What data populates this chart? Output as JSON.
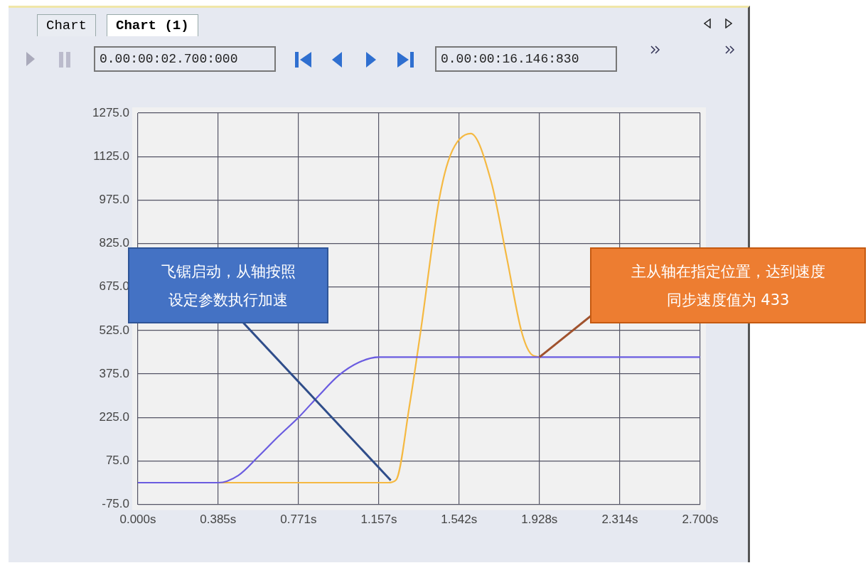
{
  "chart_data": {
    "type": "line",
    "marker": "none",
    "grid": true,
    "xlim": [
      0,
      2.7
    ],
    "xticks": [
      {
        "value": 0,
        "label": "0.000s"
      },
      {
        "value": 0.385,
        "label": "0.385s"
      },
      {
        "value": 0.771,
        "label": "0.771s"
      },
      {
        "value": 1.157,
        "label": "1.157s"
      },
      {
        "value": 1.542,
        "label": "1.542s"
      },
      {
        "value": 1.928,
        "label": "1.928s"
      },
      {
        "value": 2.314,
        "label": "2.314s"
      },
      {
        "value": 2.7,
        "label": "2.700s"
      }
    ],
    "ylim": [
      -75,
      1275
    ],
    "yticks": [
      {
        "value": -75,
        "label": "-75.0"
      },
      {
        "value": 75,
        "label": "75.0"
      },
      {
        "value": 225,
        "label": "225.0"
      },
      {
        "value": 375,
        "label": "375.0"
      },
      {
        "value": 525,
        "label": "525.0"
      },
      {
        "value": 675,
        "label": "675.0"
      },
      {
        "value": 825,
        "label": "825.0"
      },
      {
        "value": 975,
        "label": "975.0"
      },
      {
        "value": 1125,
        "label": "1125.0"
      },
      {
        "value": 1275,
        "label": "1275.0"
      }
    ],
    "series": [
      {
        "color": "#6a5ce0",
        "x": [
          0,
          0.385,
          0.482,
          0.578,
          0.675,
          0.771,
          0.868,
          0.964,
          1.061,
          1.157,
          2.7
        ],
        "values": [
          0,
          0,
          25,
          90,
          160,
          225,
          300,
          370,
          415,
          433,
          433
        ]
      },
      {
        "color": "#f5b942",
        "x": [
          0.385,
          1.2,
          1.24,
          1.304,
          1.358,
          1.446,
          1.5,
          1.598,
          1.696,
          1.77,
          1.841,
          1.885,
          1.928
        ],
        "values": [
          0,
          0,
          10,
          266,
          524,
          975,
          1129,
          1204,
          1039,
          780,
          524,
          446,
          433
        ]
      }
    ],
    "annotations": [
      "Chart",
      "Chart (1)",
      "0.00:00:02.700:000",
      "0.00:00:16.146:830",
      {
        "text": "飞锯启动，从轴按照设定参数执行加速",
        "x": 1.214,
        "y": 8
      },
      {
        "text": "主从轴在指定位置，达到速度同步速度值为 433",
        "x": 1.928,
        "y": 433
      }
    ]
  }
}
